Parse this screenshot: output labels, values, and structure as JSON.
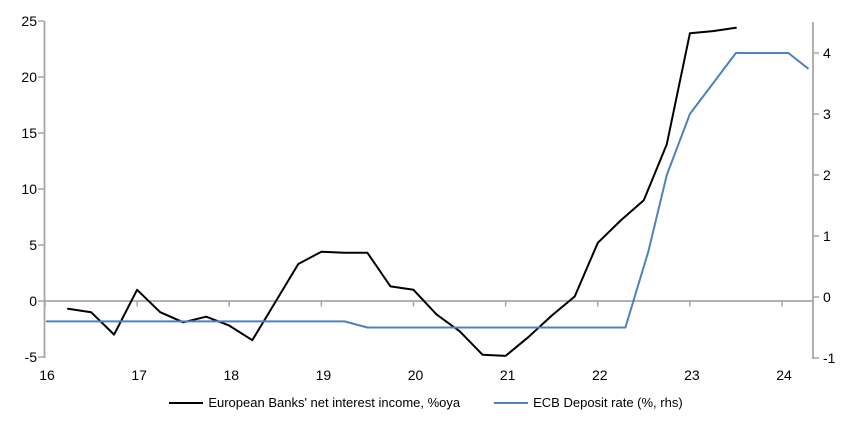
{
  "chart_data": {
    "type": "line",
    "title": "",
    "x_axis": {
      "ticks": [
        "16",
        "17",
        "18",
        "19",
        "20",
        "21",
        "22",
        "23",
        "24"
      ],
      "range": [
        16,
        24.34
      ],
      "unit": "year"
    },
    "left_axis": {
      "ticks": [
        25,
        20,
        15,
        10,
        5,
        0,
        -5
      ],
      "range": [
        -5,
        25
      ]
    },
    "right_axis": {
      "ticks": [
        4,
        3,
        2,
        1,
        0,
        -1
      ],
      "range": [
        -1.05,
        4.5
      ]
    },
    "zero_line": true,
    "grid": "off",
    "legend_position": "bottom",
    "series": [
      {
        "name": "European Banks' net interest income, %oya",
        "axis": "left",
        "color": "#000000",
        "points": [
          [
            16.25,
            -0.7
          ],
          [
            16.5,
            -1.0
          ],
          [
            16.75,
            -3.0
          ],
          [
            17.0,
            1.0
          ],
          [
            17.25,
            -1.0
          ],
          [
            17.5,
            -1.9
          ],
          [
            17.75,
            -1.4
          ],
          [
            18.0,
            -2.2
          ],
          [
            18.25,
            -3.5
          ],
          [
            18.5,
            -0.1
          ],
          [
            18.75,
            3.3
          ],
          [
            19.0,
            4.4
          ],
          [
            19.25,
            4.3
          ],
          [
            19.5,
            4.3
          ],
          [
            19.75,
            1.3
          ],
          [
            20.0,
            1.0
          ],
          [
            20.25,
            -1.2
          ],
          [
            20.5,
            -2.7
          ],
          [
            20.75,
            -4.8
          ],
          [
            21.0,
            -4.9
          ],
          [
            21.25,
            -3.2
          ],
          [
            21.5,
            -1.3
          ],
          [
            21.75,
            0.4
          ],
          [
            22.0,
            5.2
          ],
          [
            22.25,
            7.2
          ],
          [
            22.5,
            9.0
          ],
          [
            22.75,
            14.0
          ],
          [
            23.0,
            23.9
          ],
          [
            23.25,
            24.1
          ],
          [
            23.5,
            24.4
          ]
        ]
      },
      {
        "name": "ECB Deposit rate (%, rhs)",
        "axis": "right",
        "color": "#4F81BD",
        "points": [
          [
            16.02,
            -0.4
          ],
          [
            19.25,
            -0.4
          ],
          [
            19.5,
            -0.5
          ],
          [
            22.3,
            -0.5
          ],
          [
            22.55,
            0.75
          ],
          [
            22.75,
            2.0
          ],
          [
            23.0,
            3.0
          ],
          [
            23.3,
            3.6
          ],
          [
            23.5,
            4.0
          ],
          [
            24.07,
            4.0
          ],
          [
            24.28,
            3.75
          ]
        ]
      }
    ],
    "colors": {
      "axis": "#A6A6A6",
      "text": "#000000",
      "background": "#FFFFFF"
    }
  }
}
